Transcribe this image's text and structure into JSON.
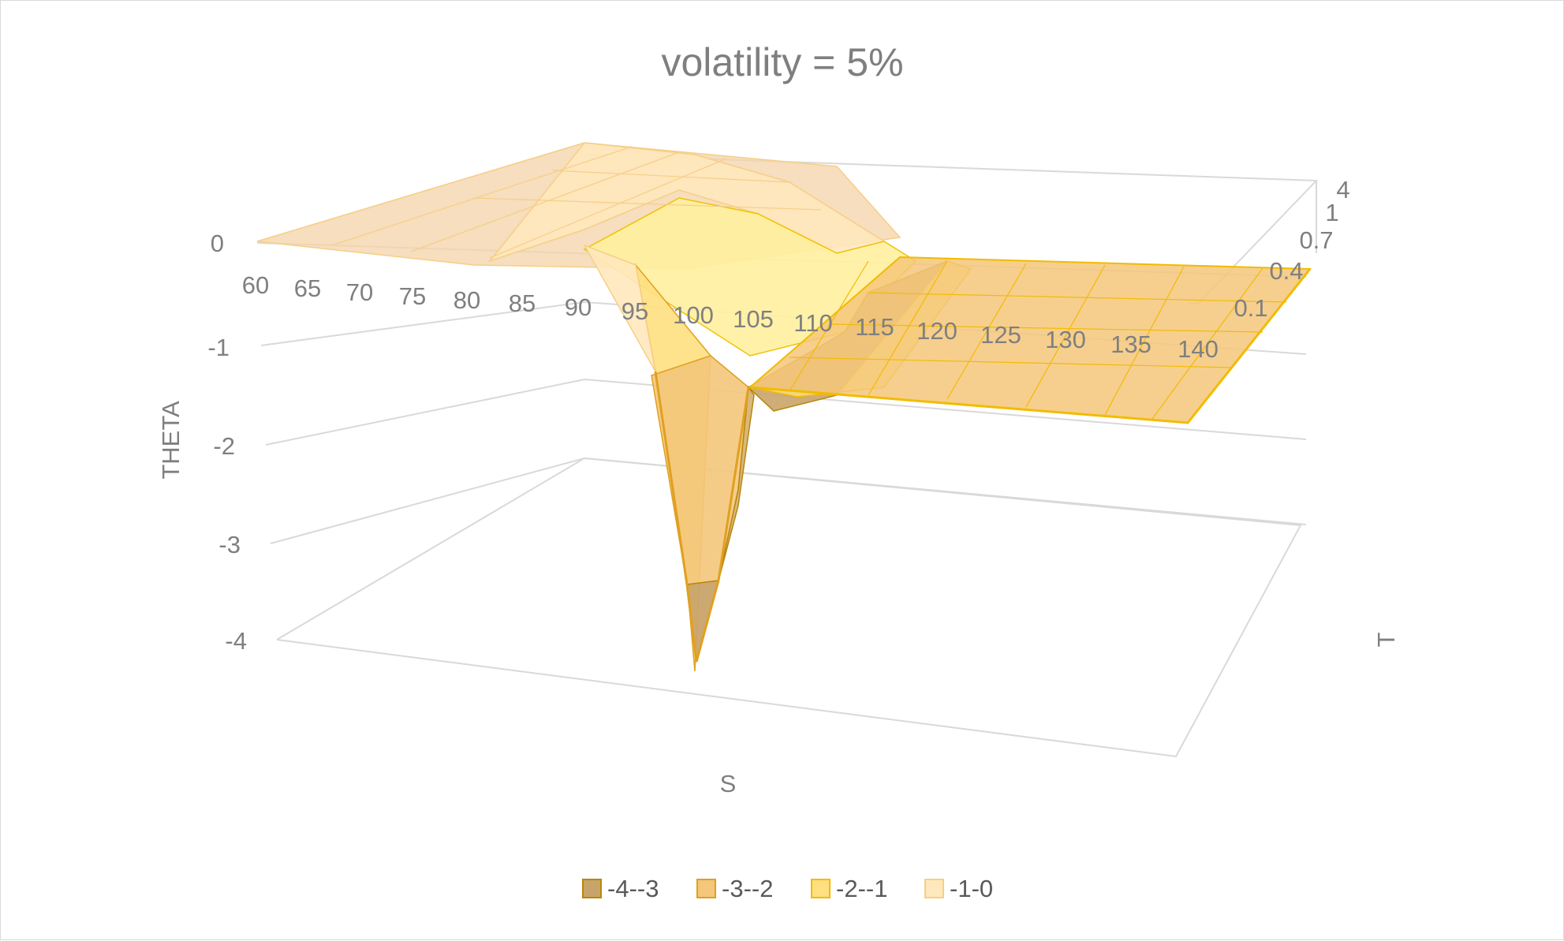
{
  "chart_data": {
    "type": "surface",
    "title": "volatility = 5%",
    "xlabel": "S",
    "ylabel": "T",
    "zlabel": "THETA",
    "x_ticks": [
      "60",
      "65",
      "70",
      "75",
      "80",
      "85",
      "90",
      "95",
      "100",
      "105",
      "110",
      "115",
      "120",
      "125",
      "130",
      "135",
      "140"
    ],
    "y_ticks": [
      "0.1",
      "0.4",
      "0.7",
      "1",
      "4"
    ],
    "z_ticks": [
      "0",
      "-1",
      "-2",
      "-3",
      "-4"
    ],
    "zlim": [
      -4,
      0
    ],
    "legend_position": "bottom",
    "legend": [
      {
        "label": "-4--3",
        "color": "#c9a46a",
        "stroke": "#b8860b"
      },
      {
        "label": "-3--2",
        "color": "#f4c77a",
        "stroke": "#e0a020"
      },
      {
        "label": "-2--1",
        "color": "#ffdf80",
        "stroke": "#f2bb00"
      },
      {
        "label": "-1-0",
        "color": "#ffe8bd",
        "stroke": "#f6cf85"
      }
    ],
    "surface_note_values": {
      "min_theta_at": {
        "S": 95,
        "T": 0.1,
        "theta": -4.0
      },
      "flat_far_otm": 0.0
    }
  }
}
